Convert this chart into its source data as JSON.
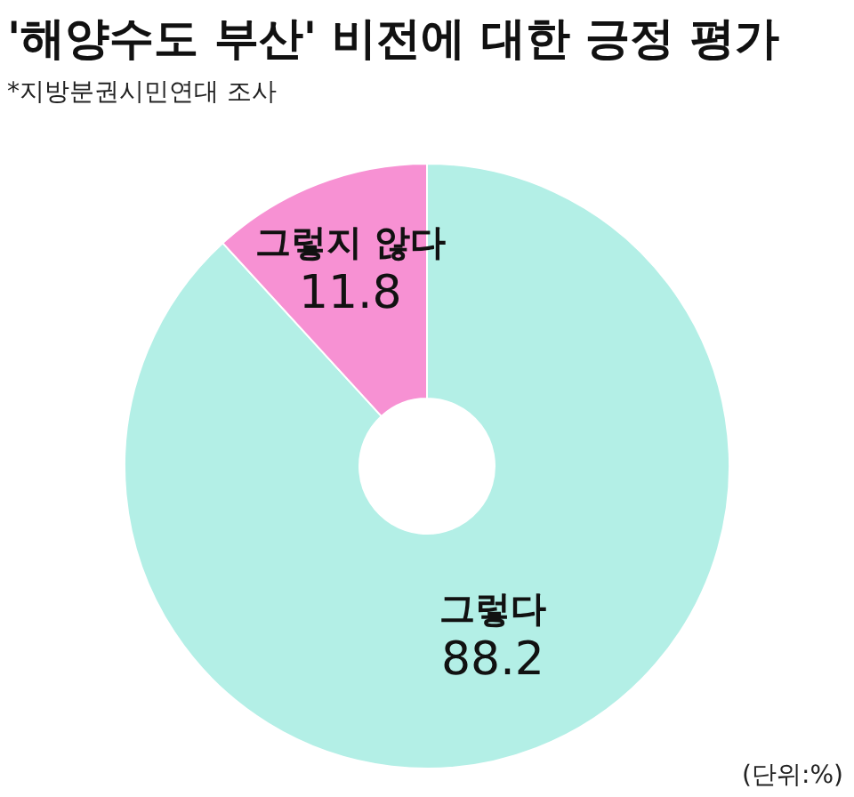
{
  "chart_data": {
    "type": "donut",
    "title": "'해양수도 부산' 비전에 대한 긍정 평가",
    "subtitle": "*지방분권시민연대 조사",
    "categories": [
      "그렇다",
      "그렇지 않다"
    ],
    "values": [
      88.2,
      11.8
    ],
    "colors": [
      "#b3efe6",
      "#f791d3"
    ],
    "data_labels": true,
    "annotations": [
      "(단위:%)"
    ]
  }
}
